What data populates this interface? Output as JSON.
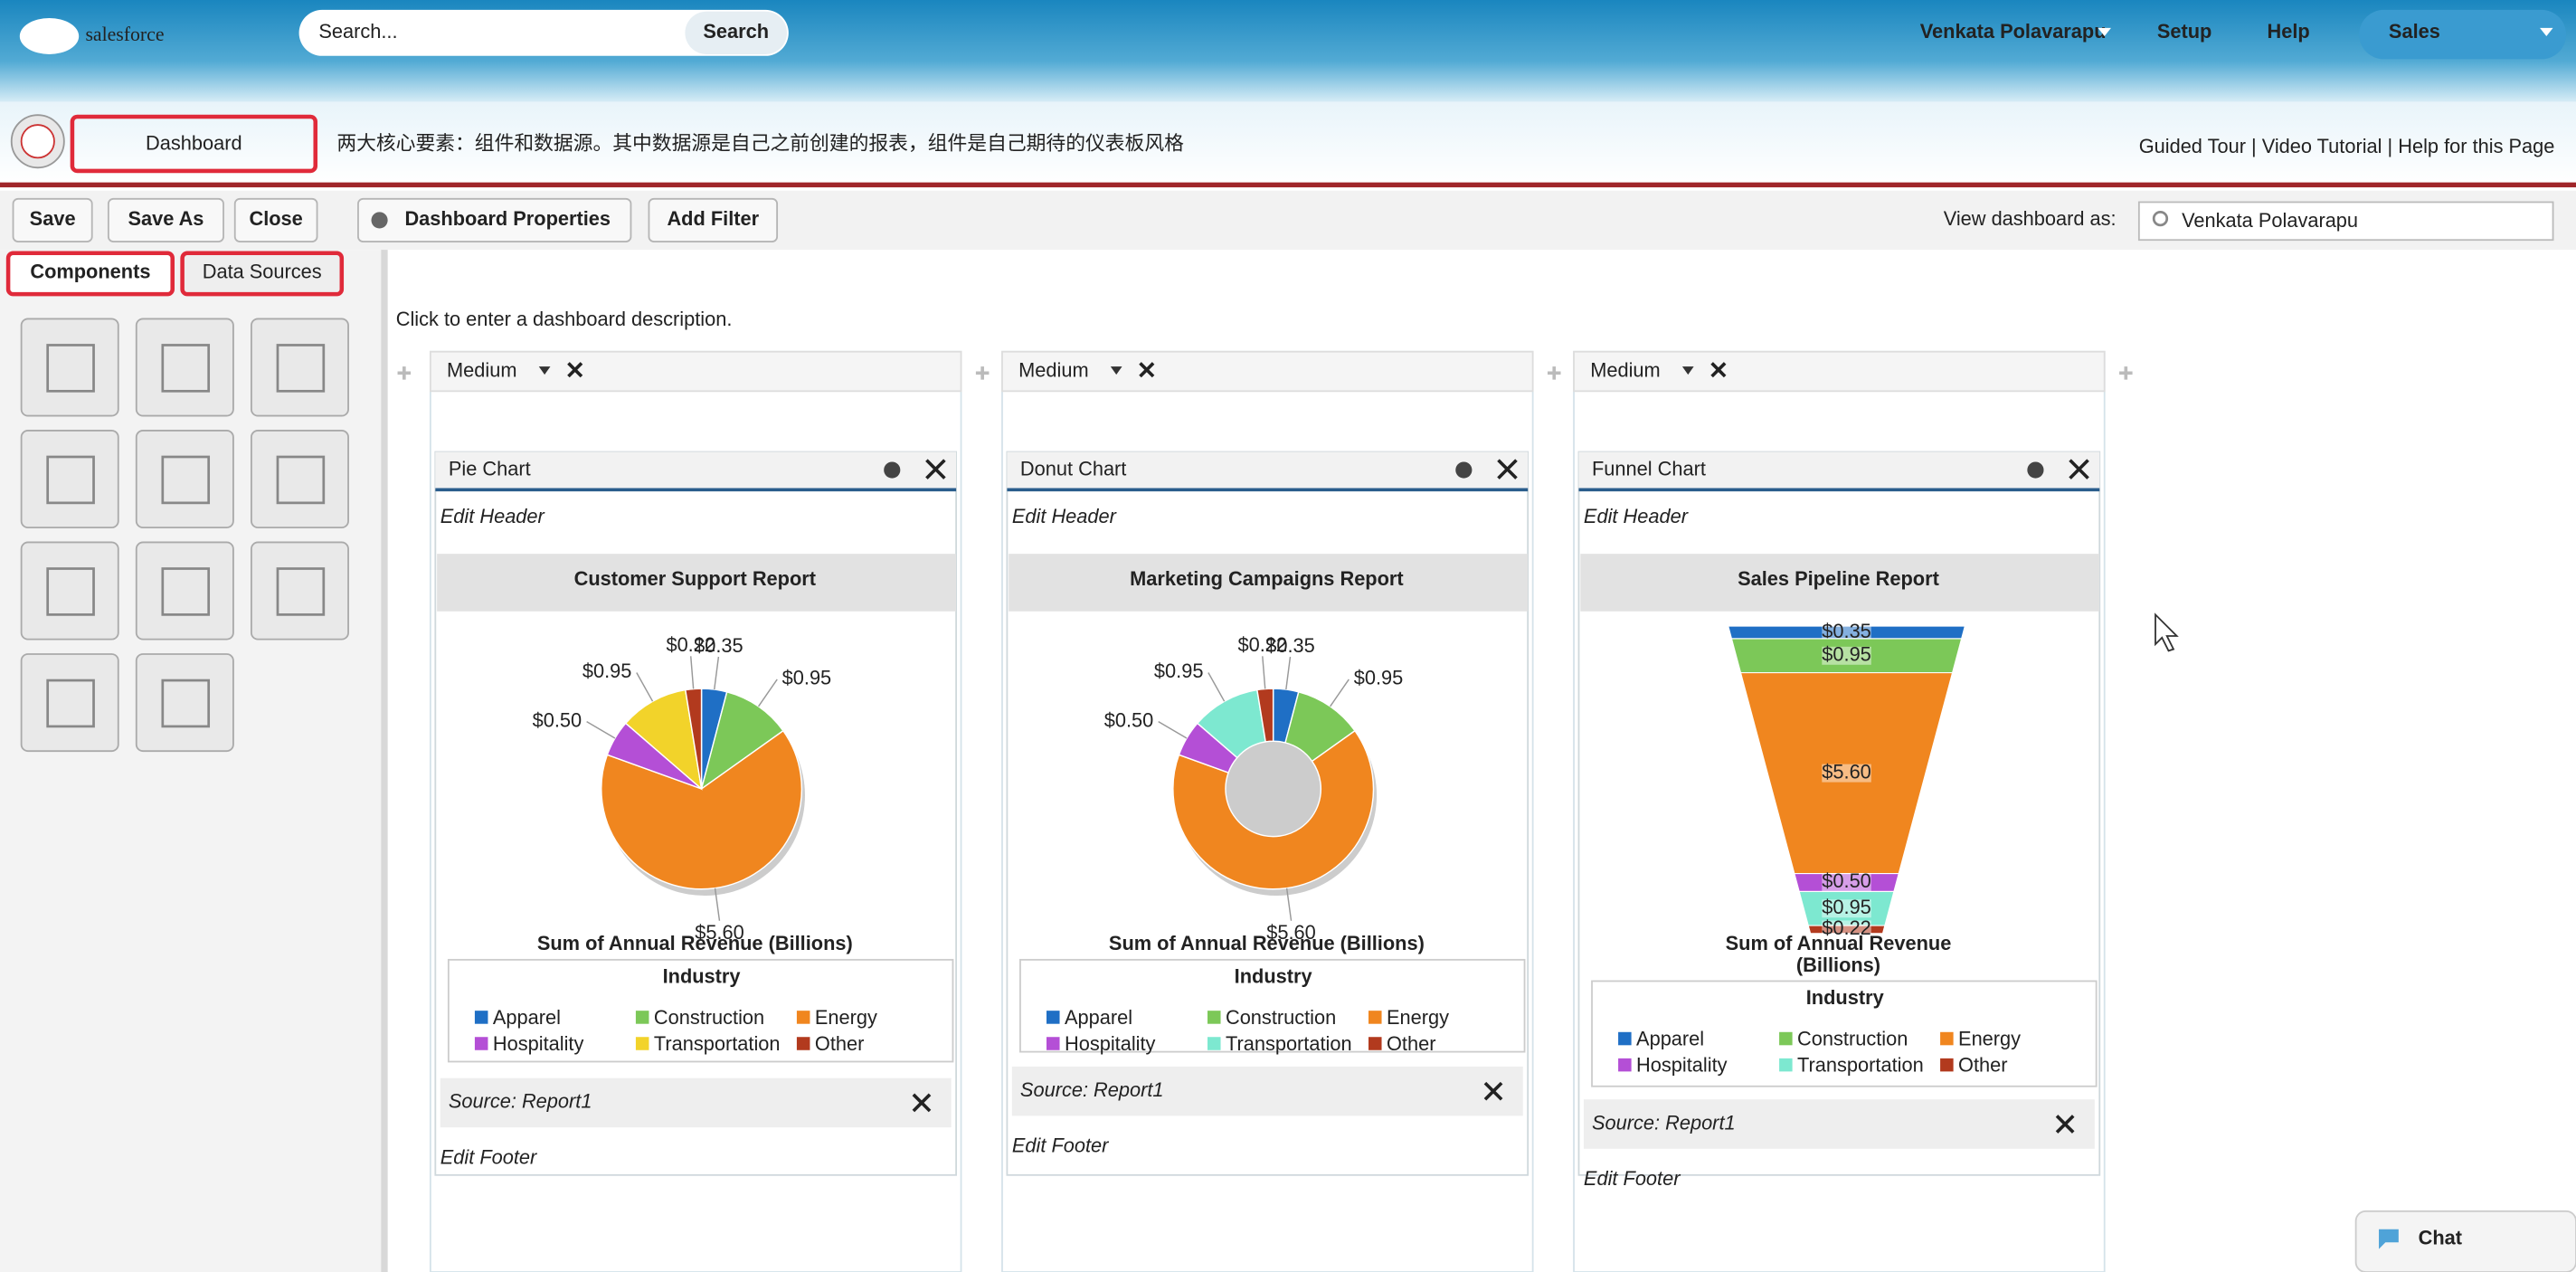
{
  "header": {
    "logo": "salesforce",
    "search_placeholder": "Search...",
    "search_button": "Search",
    "user": "Venkata Polavarapu",
    "setup": "Setup",
    "help": "Help",
    "app": "Sales",
    "page_title": "Dashboard",
    "annotation": "两大核心要素：组件和数据源。其中数据源是自己之前创建的报表，组件是自己期待的仪表板风格",
    "help_links": "Guided Tour | Video Tutorial | Help for this Page"
  },
  "toolbar": {
    "buttons": [
      "Save",
      "Save As",
      "Close",
      "Dashboard Properties",
      "Add Filter"
    ],
    "view_as_label": "View dashboard as:",
    "view_as_value": "Venkata Polavarapu"
  },
  "sidebar": {
    "tabs": [
      "Components",
      "Data Sources"
    ]
  },
  "description": "Click to enter a dashboard description.",
  "columns": [
    {
      "width": "Medium",
      "component": {
        "kind": "Pie Chart",
        "type": "pie",
        "edit_header": "Edit Header",
        "title": "Customer Support Report",
        "axis_label": [
          "Sum of Annual Revenue (Billions)"
        ],
        "legend_title": "Industry",
        "categories": [
          "Apparel",
          "Construction",
          "Energy",
          "Hospitality",
          "Transportation",
          "Other"
        ],
        "colors": [
          "#1f6fc5",
          "#7cc858",
          "#f0861f",
          "#b44fd6",
          "#f2d32a",
          "#b23a1e"
        ],
        "values": [
          0.35,
          0.95,
          5.6,
          0.5,
          0.95,
          0.22
        ],
        "value_labels": [
          "$0.35",
          "$0.95",
          "$5.60",
          "$0.50",
          "$0.95",
          "$0.22"
        ],
        "source": "Source: Report1",
        "edit_footer": "Edit Footer"
      }
    },
    {
      "width": "Medium",
      "component": {
        "kind": "Donut Chart",
        "type": "donut",
        "edit_header": "Edit Header",
        "title": "Marketing Campaigns Report",
        "axis_label": [
          "Sum of Annual Revenue (Billions)"
        ],
        "legend_title": "Industry",
        "categories": [
          "Apparel",
          "Construction",
          "Energy",
          "Hospitality",
          "Transportation",
          "Other"
        ],
        "colors": [
          "#1f6fc5",
          "#7cc858",
          "#f0861f",
          "#b44fd6",
          "#7de8d0",
          "#b23a1e"
        ],
        "values": [
          0.35,
          0.95,
          5.6,
          0.5,
          0.95,
          0.22
        ],
        "value_labels": [
          "$0.35",
          "$0.95",
          "$5.60",
          "$0.50",
          "$0.95",
          "$0.22"
        ],
        "source": "Source: Report1",
        "edit_footer": "Edit Footer"
      }
    },
    {
      "width": "Medium",
      "component": {
        "kind": "Funnel Chart",
        "type": "funnel",
        "edit_header": "Edit Header",
        "title": "Sales Pipeline Report",
        "axis_label": [
          "Sum of Annual Revenue",
          "(Billions)"
        ],
        "legend_title": "Industry",
        "categories": [
          "Apparel",
          "Construction",
          "Energy",
          "Hospitality",
          "Transportation",
          "Other"
        ],
        "colors": [
          "#1f6fc5",
          "#7cc858",
          "#f0861f",
          "#b44fd6",
          "#7de8d0",
          "#b23a1e"
        ],
        "values": [
          0.35,
          0.95,
          5.6,
          0.5,
          0.95,
          0.22
        ],
        "value_labels": [
          "$0.35",
          "$0.95",
          "$5.60",
          "$0.50",
          "$0.95",
          "$0.22"
        ],
        "source": "Source: Report1",
        "edit_footer": "Edit Footer"
      }
    }
  ],
  "chat": "Chat"
}
